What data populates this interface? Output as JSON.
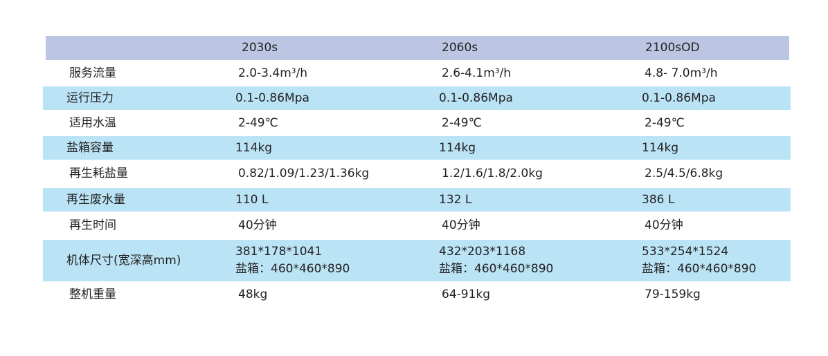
{
  "table": {
    "columns": [
      "",
      "2030s",
      "2060s",
      "2100sOD"
    ],
    "rows": [
      {
        "label": "服务流量",
        "values": [
          "2.0-3.4m³/h",
          "2.6-4.1m³/h",
          "4.8- 7.0m³/h"
        ]
      },
      {
        "label": "运行压力",
        "values": [
          "0.1-0.86Mpa",
          "0.1-0.86Mpa",
          "0.1-0.86Mpa"
        ]
      },
      {
        "label": "适用水温",
        "values": [
          "2-49℃",
          "2-49℃",
          "2-49℃"
        ]
      },
      {
        "label": "盐箱容量",
        "values": [
          "114kg",
          "114kg",
          "114kg"
        ]
      },
      {
        "label": "再生耗盐量",
        "values": [
          "0.82/1.09/1.23/1.36kg",
          "1.2/1.6/1.8/2.0kg",
          "2.5/4.5/6.8kg"
        ]
      },
      {
        "label": "再生废水量",
        "values": [
          "110 L",
          "132 L",
          "386 L"
        ]
      },
      {
        "label": "再生时间",
        "values": [
          "40分钟",
          "40分钟",
          "40分钟"
        ]
      },
      {
        "label": "机体尺寸(宽深高mm)",
        "values": [
          [
            "381*178*1041",
            "盐箱：460*460*890"
          ],
          [
            "432*203*1168",
            "盐箱：460*460*890"
          ],
          [
            "533*254*1524",
            "盐箱：460*460*890"
          ]
        ]
      },
      {
        "label": "整机重量",
        "values": [
          "48kg",
          "64-91kg",
          "79-159kg"
        ]
      }
    ]
  }
}
